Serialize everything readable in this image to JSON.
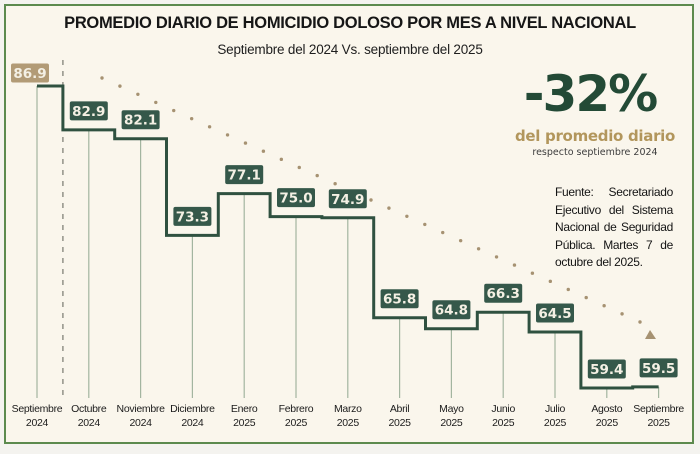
{
  "title": "PROMEDIO DIARIO DE HOMICIDIO DOLOSO POR MES A NIVEL NACIONAL",
  "subtitle": "Septiembre del 2024 Vs. septiembre del 2025",
  "highlight": {
    "value": "-32%",
    "caption": "del promedio diario",
    "sub": "respecto septiembre 2024"
  },
  "source": "Fuente: Secretariado Ejecutivo del Sistema Nacional de Seguridad Pública. Martes 7 de octubre del 2025.",
  "colors": {
    "frame_border": "#5c8a4e",
    "background": "#faf6ec",
    "line": "#2f5140",
    "label_bg": "#35584a",
    "baseline_label_bg": "#b29b76",
    "tick": "#a3b5a0",
    "trend": "#a69272"
  },
  "chart_data": {
    "type": "line",
    "subtype": "step",
    "title": "PROMEDIO DIARIO DE HOMICIDIO DOLOSO POR MES A NIVEL NACIONAL",
    "subtitle": "Septiembre del 2024 Vs. septiembre del 2025",
    "xlabel": "",
    "ylabel": "",
    "ylim": [
      55,
      90
    ],
    "grid": false,
    "categories": [
      [
        "Septiembre",
        "2024"
      ],
      [
        "Octubre",
        "2024"
      ],
      [
        "Noviembre",
        "2024"
      ],
      [
        "Diciembre",
        "2024"
      ],
      [
        "Enero",
        "2025"
      ],
      [
        "Febrero",
        "2025"
      ],
      [
        "Marzo",
        "2025"
      ],
      [
        "Abril",
        "2025"
      ],
      [
        "Mayo",
        "2025"
      ],
      [
        "Junio",
        "2025"
      ],
      [
        "Julio",
        "2025"
      ],
      [
        "Agosto",
        "2025"
      ],
      [
        "Septiembre",
        "2025"
      ]
    ],
    "series": [
      {
        "name": "Promedio diario",
        "values": [
          86.9,
          82.9,
          82.1,
          73.3,
          77.1,
          75.0,
          74.9,
          65.8,
          64.8,
          66.3,
          64.5,
          59.4,
          59.5
        ],
        "labels": [
          "86.9",
          "82.9",
          "82.1",
          "73.3",
          "77.1",
          "75.0",
          "74.9",
          "65.8",
          "64.8",
          "66.3",
          "64.5",
          "59.4",
          "59.5"
        ]
      }
    ],
    "annotations": [
      {
        "type": "trend-arrow",
        "from": "Octubre 2024",
        "to": "Septiembre 2025",
        "style": "dotted",
        "direction": "down"
      },
      {
        "type": "reference-line",
        "at": "Septiembre 2024",
        "style": "dashed"
      }
    ]
  }
}
